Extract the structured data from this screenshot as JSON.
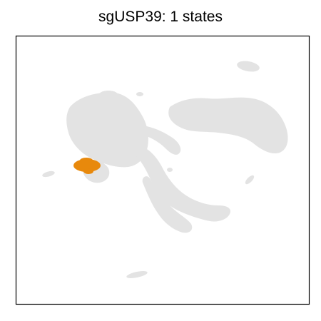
{
  "chart_data": {
    "type": "scatter",
    "title": "sgUSP39: 1 states",
    "xlabel": "",
    "ylabel": "",
    "axes_ticks": "none",
    "grid": false,
    "legend": "none",
    "background_color": "#e3e3e3",
    "highlight_color": "#e8890c",
    "series": [
      {
        "role": "background",
        "color": "#e3e3e3",
        "points": []
      },
      {
        "role": "highlight",
        "color": "#e8890c",
        "points": []
      }
    ]
  }
}
